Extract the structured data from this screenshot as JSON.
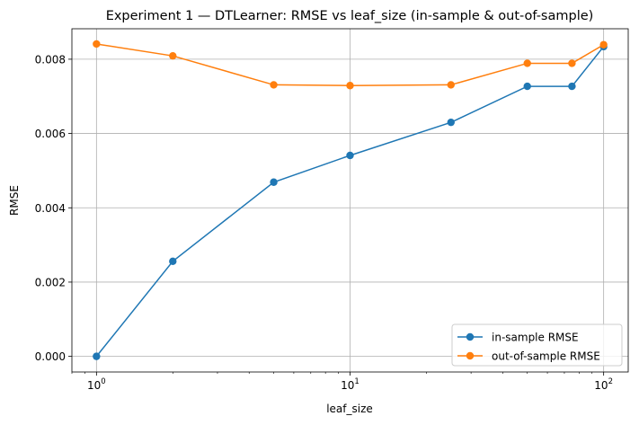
{
  "chart_data": {
    "type": "line",
    "title": "Experiment 1 — DTLearner: RMSE vs leaf_size (in-sample & out-of-sample)",
    "xlabel": "leaf_size",
    "ylabel": "RMSE",
    "x_scale": "log",
    "x_ticks": [
      {
        "value": 1,
        "base": "10",
        "exp": "0"
      },
      {
        "value": 10,
        "base": "10",
        "exp": "1"
      },
      {
        "value": 100,
        "base": "10",
        "exp": "2"
      }
    ],
    "y_ticks": [
      "0.000",
      "0.002",
      "0.004",
      "0.006",
      "0.008"
    ],
    "xlim": [
      0.8,
      125
    ],
    "ylim": [
      -0.00042,
      0.00882
    ],
    "grid": true,
    "legend_position": "lower right",
    "x": [
      1,
      2,
      5,
      10,
      25,
      50,
      75,
      100
    ],
    "series": [
      {
        "name": "in-sample RMSE",
        "color": "#1f77b4",
        "values": [
          0.0,
          0.00256,
          0.00469,
          0.00541,
          0.0063,
          0.00727,
          0.00727,
          0.00834
        ]
      },
      {
        "name": "out-of-sample RMSE",
        "color": "#ff7f0e",
        "values": [
          0.00841,
          0.00809,
          0.00731,
          0.00729,
          0.00731,
          0.00789,
          0.00789,
          0.00839
        ]
      }
    ]
  }
}
